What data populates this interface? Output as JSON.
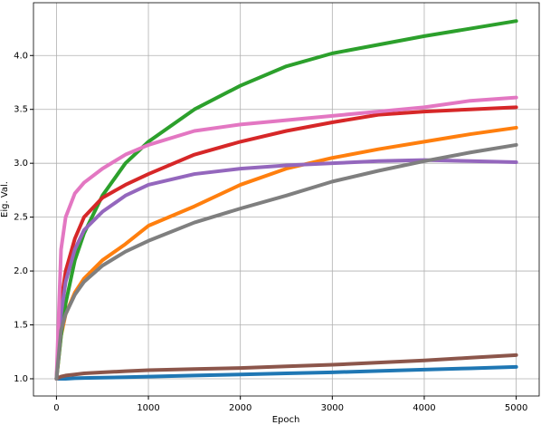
{
  "chart_data": {
    "type": "line",
    "x_label": "Epoch",
    "y_label": "Eig. Val.",
    "x": [
      0,
      50,
      100,
      200,
      300,
      500,
      750,
      1000,
      1500,
      2000,
      2500,
      3000,
      3500,
      4000,
      4500,
      5000
    ],
    "series": [
      {
        "color": "#1f77b4",
        "values": [
          1.0,
          1.0,
          1.0,
          1.005,
          1.007,
          1.01,
          1.015,
          1.02,
          1.03,
          1.04,
          1.05,
          1.06,
          1.072,
          1.085,
          1.097,
          1.11
        ]
      },
      {
        "color": "#ff7f0e",
        "values": [
          1.0,
          1.4,
          1.6,
          1.8,
          1.93,
          2.1,
          2.25,
          2.42,
          2.6,
          2.8,
          2.95,
          3.05,
          3.13,
          3.2,
          3.27,
          3.33
        ]
      },
      {
        "color": "#2ca02c",
        "values": [
          1.0,
          1.4,
          1.7,
          2.1,
          2.35,
          2.7,
          3.0,
          3.2,
          3.5,
          3.72,
          3.9,
          4.02,
          4.1,
          4.18,
          4.25,
          4.32
        ]
      },
      {
        "color": "#d62728",
        "values": [
          1.0,
          1.7,
          2.0,
          2.3,
          2.5,
          2.68,
          2.8,
          2.9,
          3.08,
          3.2,
          3.3,
          3.38,
          3.45,
          3.48,
          3.5,
          3.52
        ]
      },
      {
        "color": "#9467bd",
        "values": [
          1.0,
          1.6,
          1.9,
          2.2,
          2.38,
          2.55,
          2.7,
          2.8,
          2.9,
          2.95,
          2.98,
          3.0,
          3.02,
          3.03,
          3.02,
          3.01
        ]
      },
      {
        "color": "#8c564b",
        "values": [
          1.0,
          1.02,
          1.03,
          1.04,
          1.05,
          1.06,
          1.07,
          1.08,
          1.09,
          1.1,
          1.115,
          1.13,
          1.15,
          1.17,
          1.195,
          1.22
        ]
      },
      {
        "color": "#e377c2",
        "values": [
          1.0,
          2.2,
          2.5,
          2.72,
          2.82,
          2.95,
          3.08,
          3.17,
          3.3,
          3.36,
          3.4,
          3.44,
          3.48,
          3.52,
          3.58,
          3.61
        ]
      },
      {
        "color": "#7f7f7f",
        "values": [
          1.0,
          1.45,
          1.6,
          1.78,
          1.9,
          2.05,
          2.18,
          2.28,
          2.45,
          2.58,
          2.7,
          2.83,
          2.93,
          3.02,
          3.1,
          3.17
        ]
      }
    ],
    "xlim": [
      -250,
      5250
    ],
    "ylim": [
      0.84,
      4.49
    ],
    "xticks": [
      0,
      1000,
      2000,
      3000,
      4000,
      5000
    ],
    "yticks": [
      {
        "value": 1.0,
        "label": "1.0"
      },
      1.5,
      {
        "value": 2.0,
        "label": "2.0"
      },
      2.5,
      {
        "value": 3.0,
        "label": "3.0"
      },
      3.5,
      {
        "value": 4.0,
        "label": "4.0"
      }
    ],
    "grid": true,
    "line_width": 4
  }
}
